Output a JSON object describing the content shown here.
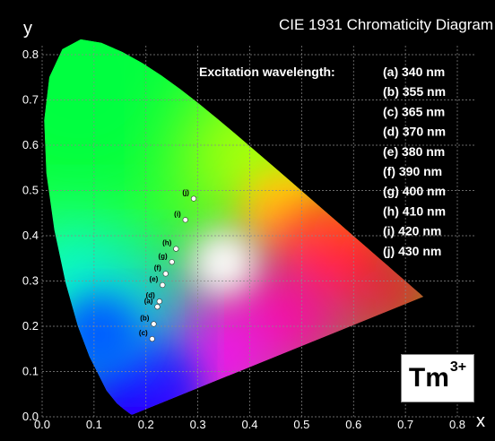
{
  "chart_data": {
    "type": "scatter",
    "title": "CIE 1931 Chromaticity Diagram",
    "xlabel": "x",
    "ylabel": "y",
    "xlim": [
      0.0,
      0.85
    ],
    "ylim": [
      0.0,
      0.85
    ],
    "xticks": [
      "0.0",
      "0.1",
      "0.2",
      "0.3",
      "0.4",
      "0.5",
      "0.6",
      "0.7",
      "0.8"
    ],
    "yticks": [
      "0.0",
      "0.1",
      "0.2",
      "0.3",
      "0.4",
      "0.5",
      "0.6",
      "0.7",
      "0.8"
    ],
    "grid": true,
    "legend_heading": "Excitation wavelength:",
    "points": [
      {
        "label": "(a)",
        "legend": "(a) 340 nm",
        "x": 0.222,
        "y": 0.243
      },
      {
        "label": "(b)",
        "legend": "(b) 355 nm",
        "x": 0.215,
        "y": 0.205
      },
      {
        "label": "(c)",
        "legend": "(c) 365 nm",
        "x": 0.212,
        "y": 0.172
      },
      {
        "label": "(d)",
        "legend": "(d) 370 nm",
        "x": 0.226,
        "y": 0.255
      },
      {
        "label": "(e)",
        "legend": "(e) 380 nm",
        "x": 0.232,
        "y": 0.291
      },
      {
        "label": "(f)",
        "legend": "(f) 390 nm",
        "x": 0.238,
        "y": 0.316
      },
      {
        "label": "(g)",
        "legend": "(g) 400 nm",
        "x": 0.25,
        "y": 0.342
      },
      {
        "label": "(h)",
        "legend": "(h) 410 nm",
        "x": 0.258,
        "y": 0.371
      },
      {
        "label": "(i)",
        "legend": "(i) 420 nm",
        "x": 0.276,
        "y": 0.435
      },
      {
        "label": "(j)",
        "legend": "(j) 430 nm",
        "x": 0.292,
        "y": 0.482
      }
    ],
    "ion": {
      "symbol": "Tm",
      "charge": "3+"
    }
  }
}
